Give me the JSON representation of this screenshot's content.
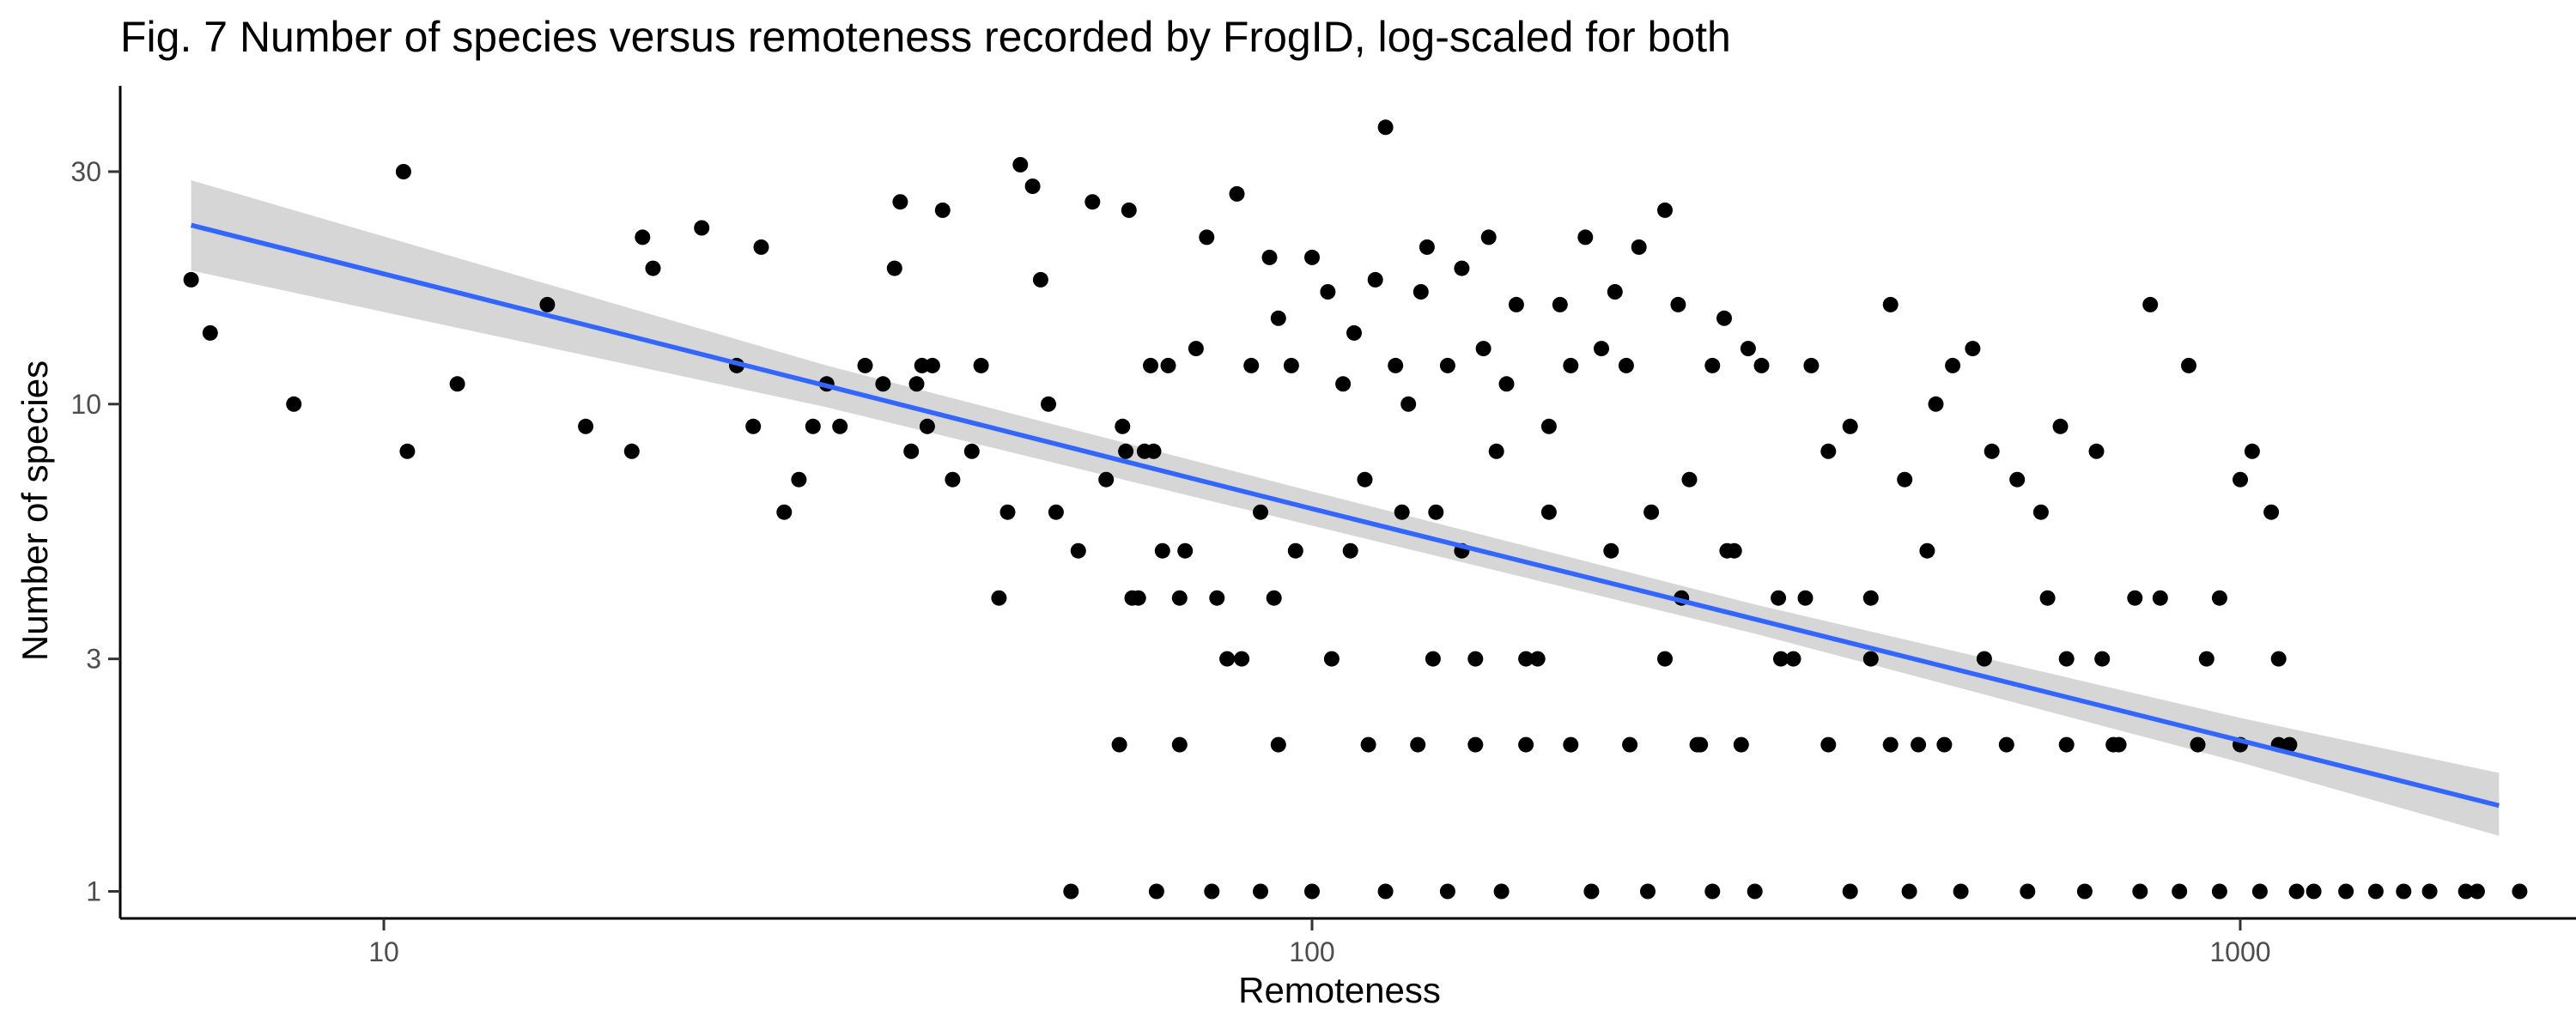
{
  "chart_data": {
    "type": "scatter",
    "title": "Fig. 7  Number of species versus remoteness recorded by FrogID, log-scaled for both",
    "xlabel": "Remoteness",
    "ylabel": "Number of species",
    "x_scale": "log10",
    "y_scale": "log10",
    "xlim": [
      5.2,
      2300
    ],
    "ylim": [
      0.88,
      45
    ],
    "x_ticks": [
      {
        "value": 10,
        "label": "10"
      },
      {
        "value": 100,
        "label": "100"
      },
      {
        "value": 1000,
        "label": "1000"
      }
    ],
    "y_ticks": [
      {
        "value": 1,
        "label": "1"
      },
      {
        "value": 3,
        "label": "3"
      },
      {
        "value": 10,
        "label": "10"
      },
      {
        "value": 30,
        "label": "30"
      }
    ],
    "grid": false,
    "legend": "none",
    "colors": {
      "points": "#000000",
      "fit_line": "#3366ff",
      "confidence_band": "#999999"
    },
    "fit": {
      "method": "linear regression on log-log scale",
      "x": [
        6.2,
        30,
        100,
        300,
        1000,
        1900
      ],
      "y": [
        23.3,
        10.9,
        6.1,
        3.62,
        2.04,
        1.5
      ],
      "lower": [
        18.8,
        9.85,
        5.63,
        3.38,
        1.84,
        1.3
      ],
      "upper": [
        28.8,
        12.0,
        6.62,
        3.88,
        2.27,
        1.75
      ]
    },
    "series": [
      {
        "x": [
          6.2,
          6.5,
          8,
          10.5,
          10.6,
          12,
          15,
          16.5,
          18.5,
          19,
          19.5,
          22,
          24,
          25,
          25.5,
          27,
          28,
          29,
          30,
          31,
          33,
          34.5,
          35.5,
          36,
          37,
          37.5,
          38,
          38.5,
          39,
          40,
          41,
          43,
          44,
          46,
          47,
          48.5,
          50,
          51,
          52,
          53,
          56,
          58,
          60,
          62.5,
          63,
          63.5,
          64,
          65,
          66,
          67,
          67.5,
          69,
          70,
          72,
          73,
          75,
          77,
          79,
          81,
          83,
          86,
          88,
          90,
          91,
          92,
          95,
          100,
          104,
          108,
          111,
          114,
          117,
          120,
          123,
          127,
          131,
          133,
          136,
          140,
          145,
          150,
          153,
          155,
          158,
          162,
          166,
          170,
          175,
          180,
          185,
          190,
          197,
          205,
          212,
          218,
          225,
          232,
          240,
          248,
          255,
          262,
          270,
          278,
          285,
          295,
          305,
          318,
          330,
          345,
          360,
          380,
          400,
          420,
          435,
          450,
          470,
          490,
          515,
          540,
          575,
          610,
          640,
          650,
          700,
          730,
          770,
          800,
          880,
          920,
          950,
          1000,
          1030,
          1080,
          1100,
          1130,
          1500,
          1800,
          2000
        ],
        "y": [
          18,
          14,
          10,
          30,
          8,
          11,
          16,
          9,
          8,
          22,
          19,
          23,
          12,
          9,
          21,
          6,
          7,
          9,
          11,
          9,
          12,
          11,
          19,
          26,
          8,
          11,
          12,
          9,
          12,
          25,
          7,
          8,
          12,
          4,
          6,
          31,
          28,
          18,
          10,
          6,
          5,
          26,
          7,
          9,
          8,
          25,
          4,
          4,
          8,
          12,
          8,
          5,
          12,
          4,
          5,
          13,
          22,
          4,
          3,
          27,
          12,
          6,
          20,
          4,
          15,
          12,
          20,
          17,
          11,
          14,
          7,
          18,
          37,
          12,
          10,
          17,
          21,
          6,
          12,
          19,
          3,
          13,
          22,
          8,
          11,
          16,
          2,
          3,
          9,
          16,
          12,
          22,
          13,
          17,
          12,
          21,
          6,
          25,
          16,
          7,
          2,
          12,
          15,
          5,
          13,
          12,
          4,
          3,
          12,
          8,
          9,
          4,
          16,
          7,
          2,
          10,
          12,
          13,
          8,
          7,
          6,
          9,
          3,
          8,
          2,
          4,
          16,
          12,
          3,
          4,
          7,
          8,
          6,
          3,
          2,
          1,
          1,
          1
        ]
      },
      {
        "x": [
          55,
          62,
          68,
          72,
          78,
          84,
          88,
          92,
          96,
          100,
          105,
          110,
          115,
          120,
          125,
          130,
          135,
          140,
          145,
          150,
          160,
          170,
          180,
          190,
          200,
          210,
          220,
          230,
          240,
          250,
          260,
          270,
          280,
          290,
          300,
          320,
          340,
          360,
          380,
          400,
          420,
          440,
          460,
          480,
          500,
          530,
          560,
          590,
          620,
          650,
          680,
          710,
          740,
          780,
          820,
          860,
          900,
          950,
          1000,
          1050,
          1100,
          1150,
          1200,
          1300,
          1400,
          1600,
          1750
        ],
        "y": [
          1,
          2,
          1,
          2,
          1,
          3,
          1,
          2,
          5,
          1,
          3,
          5,
          2,
          1,
          6,
          2,
          3,
          1,
          5,
          2,
          1,
          3,
          6,
          2,
          1,
          5,
          2,
          1,
          3,
          4,
          2,
          1,
          5,
          2,
          1,
          3,
          4,
          2,
          1,
          3,
          2,
          1,
          5,
          2,
          1,
          3,
          2,
          1,
          4,
          2,
          1,
          3,
          2,
          1,
          4,
          1,
          2,
          1,
          2,
          1,
          2,
          1,
          1,
          1,
          1,
          1,
          1
        ]
      }
    ]
  }
}
